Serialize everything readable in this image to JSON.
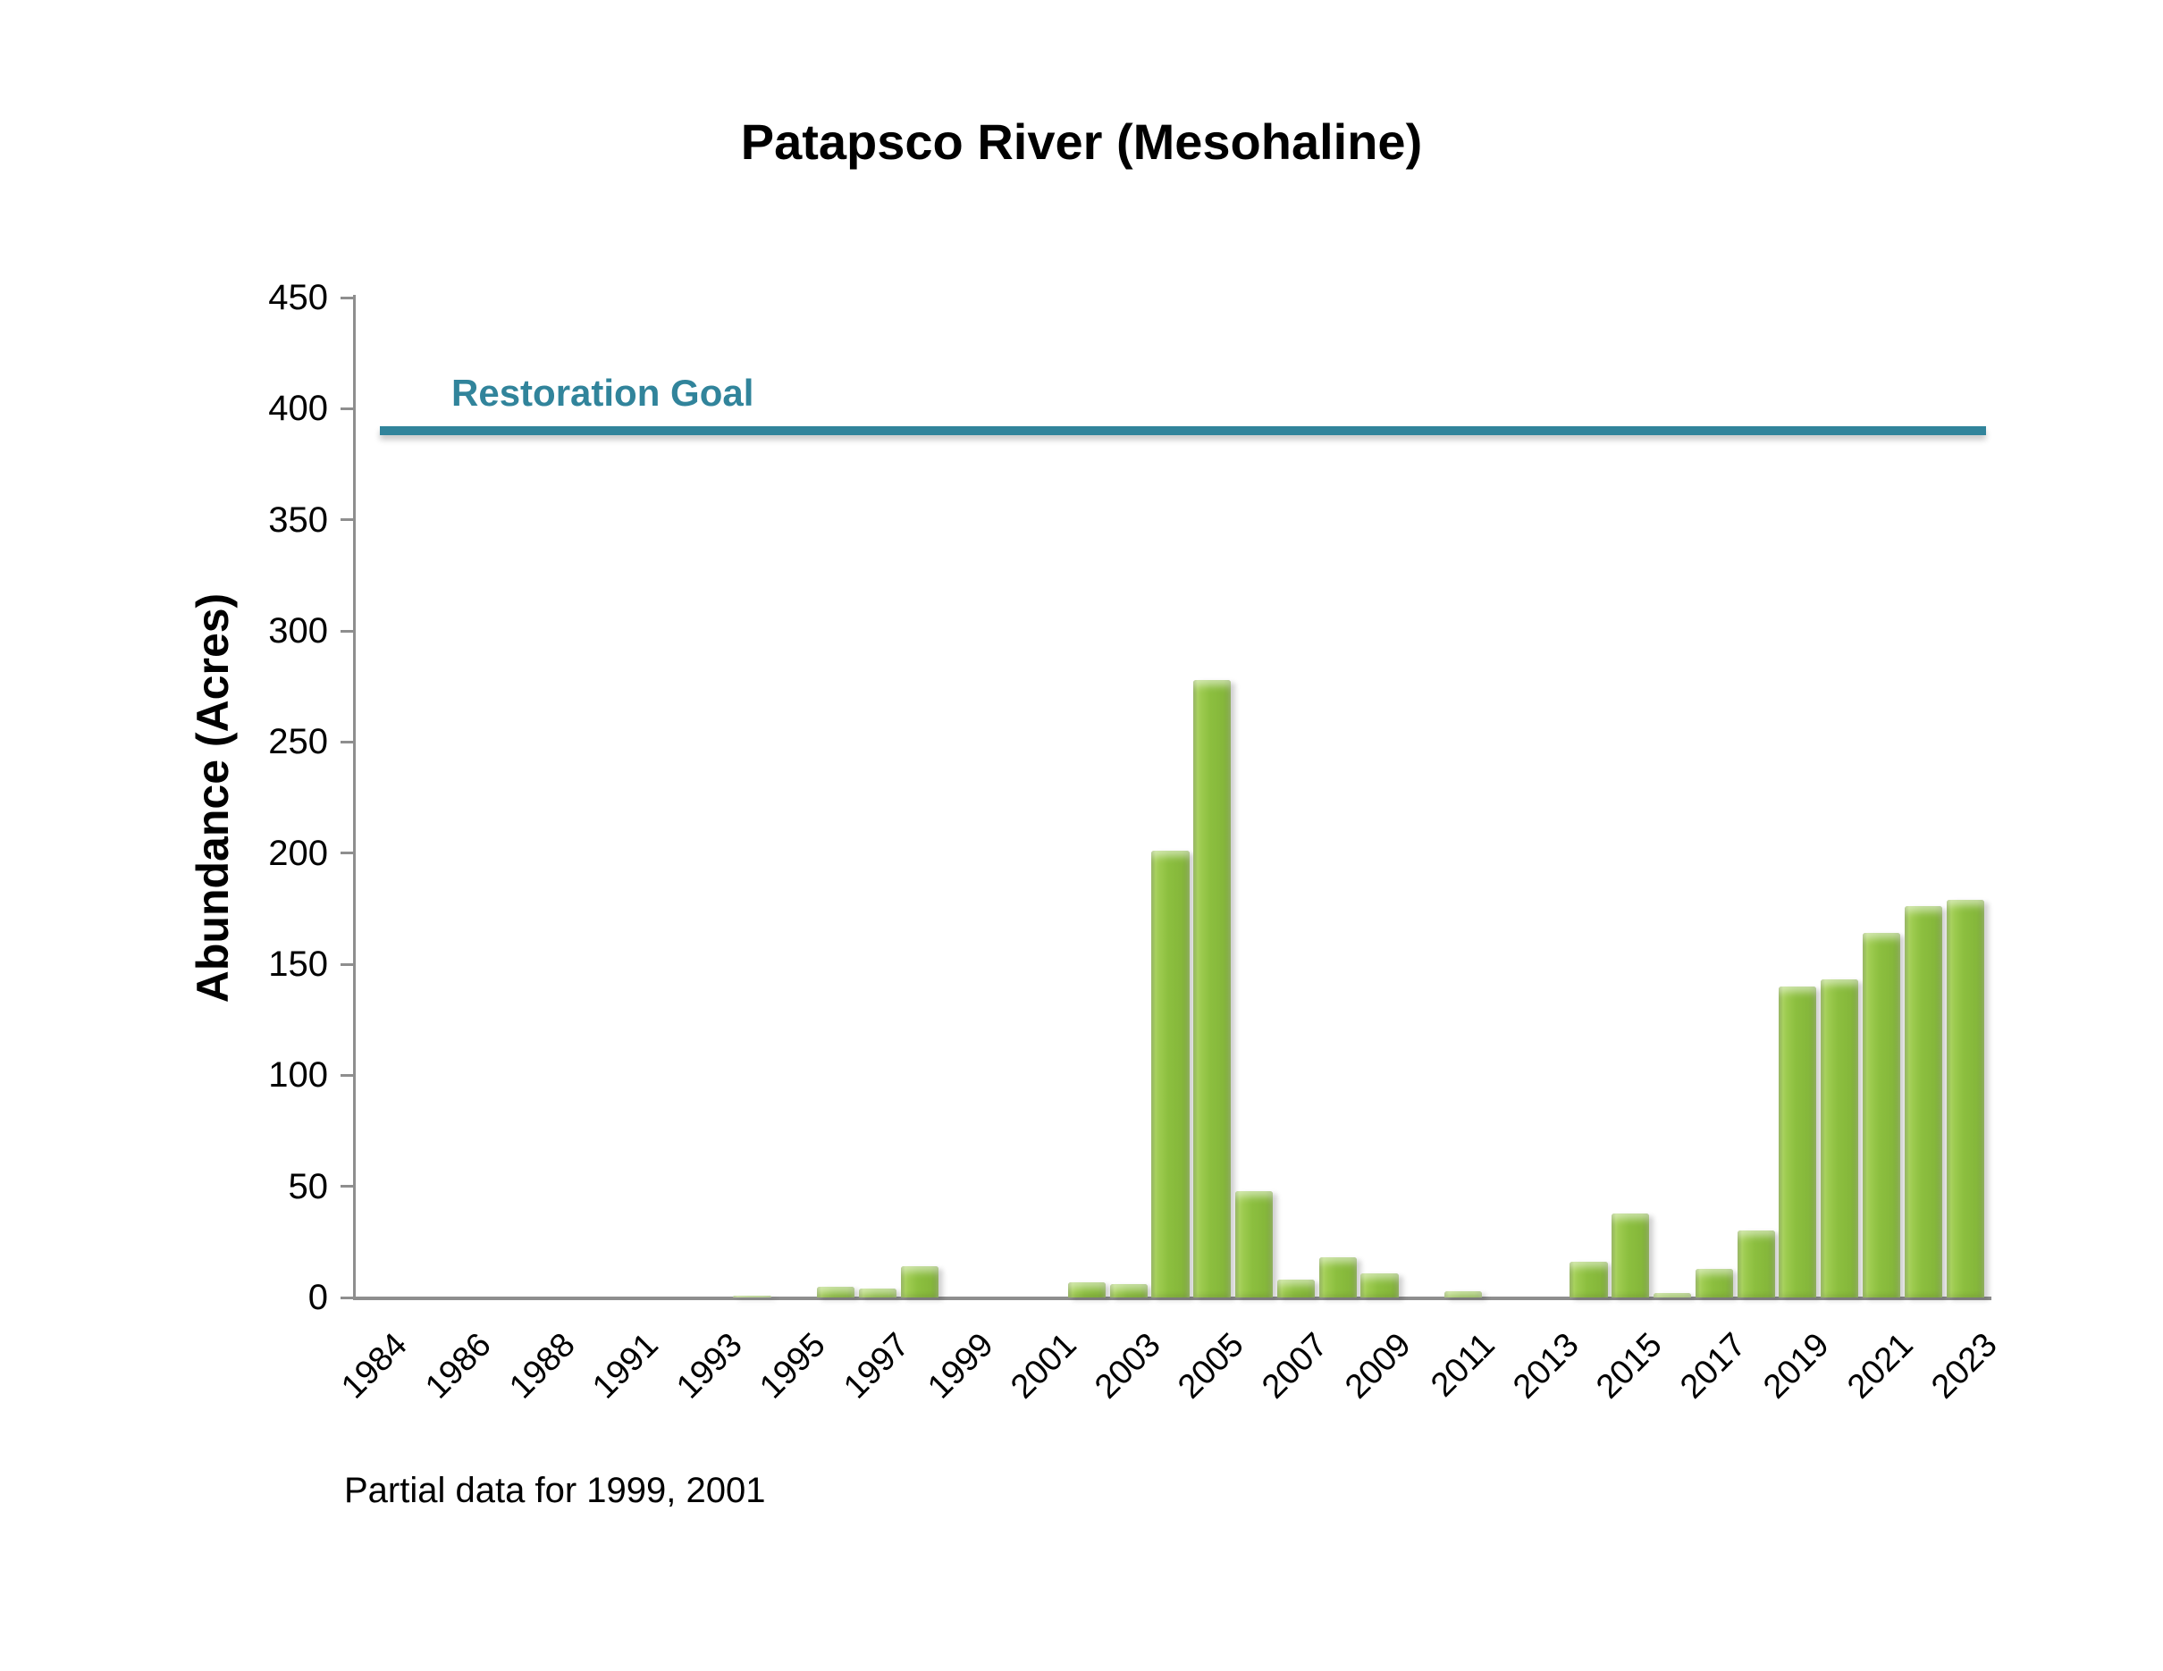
{
  "title": "Patapsco River (Mesohaline)",
  "y_axis": {
    "label": "Abundance (Acres)",
    "tick_labels": [
      "0",
      "50",
      "100",
      "150",
      "200",
      "250",
      "300",
      "350",
      "400",
      "450"
    ]
  },
  "x_axis": {
    "tick_labels": [
      "1984",
      "1986",
      "1988",
      "1991",
      "1993",
      "1995",
      "1997",
      "1999",
      "2001",
      "2003",
      "2005",
      "2007",
      "2009",
      "2011",
      "2013",
      "2015",
      "2017",
      "2019",
      "2021",
      "2023"
    ]
  },
  "reference_line": {
    "label": "Restoration Goal",
    "value": 390,
    "color": "#31849B"
  },
  "note": "Partial data for 1999, 2001",
  "bar_color": "#8CBF3F",
  "chart_data": {
    "type": "bar",
    "title": "Patapsco River (Mesohaline)",
    "xlabel": "",
    "ylabel": "Abundance (Acres)",
    "ylim": [
      0,
      450
    ],
    "ytick_step": 50,
    "grid": false,
    "legend_position": "none",
    "categories": [
      1984,
      1985,
      1986,
      1987,
      1988,
      1989,
      1991,
      1992,
      1993,
      1994,
      1995,
      1996,
      1997,
      1998,
      1999,
      2000,
      2001,
      2002,
      2003,
      2004,
      2005,
      2006,
      2007,
      2008,
      2009,
      2010,
      2011,
      2012,
      2013,
      2014,
      2015,
      2016,
      2017,
      2018,
      2019,
      2020,
      2021,
      2022,
      2023
    ],
    "values": [
      0,
      0,
      0,
      0,
      0,
      0,
      0,
      0,
      0,
      1,
      0,
      5,
      4,
      14,
      0,
      0,
      0,
      7,
      6,
      201,
      278,
      48,
      8,
      18,
      11,
      0,
      3,
      0,
      0,
      16,
      38,
      2,
      13,
      30,
      140,
      143,
      164,
      176,
      179
    ],
    "labeled_categories": [
      1984,
      1986,
      1988,
      1991,
      1993,
      1995,
      1997,
      1999,
      2001,
      2003,
      2005,
      2007,
      2009,
      2011,
      2013,
      2015,
      2017,
      2019,
      2021,
      2023
    ],
    "reference_line": {
      "label": "Restoration Goal",
      "value": 390
    },
    "annotations": [
      "Partial data for 1999, 2001"
    ]
  }
}
